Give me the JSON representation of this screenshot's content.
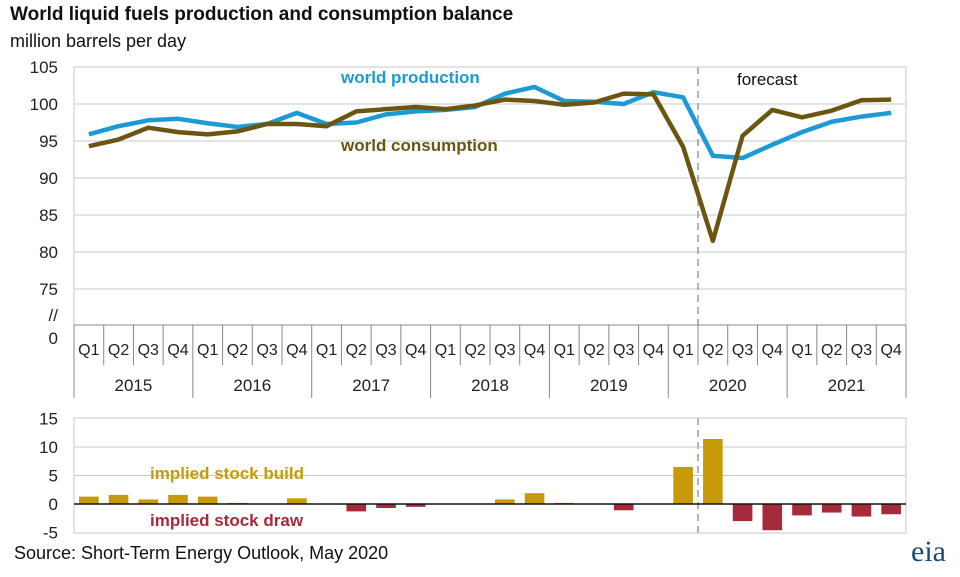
{
  "header": {
    "title": "World liquid fuels production and consumption balance",
    "subtitle": "million barrels per day"
  },
  "footer": {
    "source": "Source: Short-Term Energy Outlook, May 2020",
    "logo": "eia"
  },
  "colors": {
    "production": "#1b9ad6",
    "consumption": "#6b5511",
    "build": "#c89a0a",
    "draw": "#a52a3a",
    "grid": "#c8c8c8"
  },
  "chart_data": [
    {
      "type": "line",
      "quarters": [
        "Q1",
        "Q2",
        "Q3",
        "Q4"
      ],
      "years": [
        "2015",
        "2016",
        "2017",
        "2018",
        "2019",
        "2020",
        "2021"
      ],
      "yticks": [
        "105",
        "100",
        "95",
        "90",
        "85",
        "80",
        "75",
        "//",
        "0"
      ],
      "ylim": [
        75,
        105
      ],
      "axis_break": true,
      "grid": true,
      "annotation": "forecast",
      "forecast_start": "2020 Q2",
      "series": [
        {
          "name": "world production",
          "values": [
            95.9,
            97.0,
            97.8,
            98.0,
            97.4,
            96.9,
            97.3,
            98.8,
            97.3,
            97.5,
            98.6,
            99.0,
            99.2,
            99.6,
            101.4,
            102.3,
            100.4,
            100.3,
            100.0,
            101.6,
            100.9,
            93.0,
            92.7,
            94.5,
            96.2,
            97.6,
            98.3,
            98.8
          ]
        },
        {
          "name": "world consumption",
          "values": [
            94.3,
            95.2,
            96.8,
            96.2,
            95.9,
            96.3,
            97.3,
            97.3,
            97.0,
            99.0,
            99.3,
            99.6,
            99.3,
            99.8,
            100.6,
            100.4,
            99.9,
            100.2,
            101.4,
            101.3,
            94.2,
            81.5,
            95.7,
            99.2,
            98.2,
            99.1,
            100.5,
            100.6
          ]
        }
      ]
    },
    {
      "type": "bar",
      "yticks": [
        "15",
        "10",
        "5",
        "0",
        "-5"
      ],
      "ylim": [
        -5,
        15
      ],
      "grid": true,
      "labels": {
        "build": "implied stock  build",
        "draw": "implied stock draw"
      },
      "values": [
        1.3,
        1.6,
        0.8,
        1.6,
        1.3,
        0.2,
        0,
        1.0,
        0,
        -1.3,
        -0.7,
        -0.5,
        0,
        0,
        0.8,
        1.9,
        0.2,
        0,
        -1.1,
        0,
        6.5,
        11.4,
        -3.0,
        -4.6,
        -2.0,
        -1.5,
        -2.2,
        -1.8
      ]
    }
  ]
}
